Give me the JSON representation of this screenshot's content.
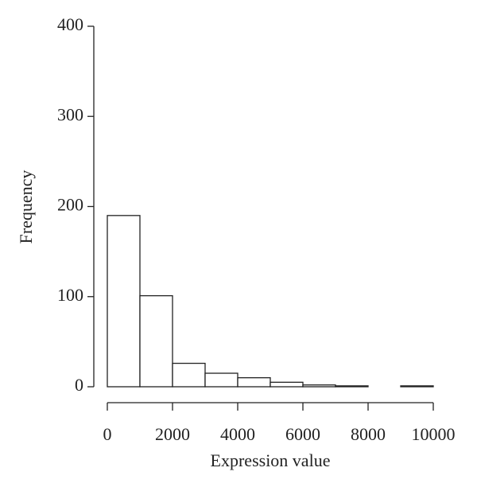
{
  "chart_data": {
    "type": "histogram",
    "xlabel": "Expression value",
    "ylabel": "Frequency",
    "bins": [
      0,
      1000,
      2000,
      3000,
      4000,
      5000,
      6000,
      7000,
      8000,
      9000,
      10000
    ],
    "values": [
      190,
      101,
      26,
      15,
      10,
      5,
      2,
      1,
      0,
      1
    ],
    "color": "#ffffff",
    "edgecolor": "#222222",
    "xlim": [
      0,
      10000
    ],
    "xticks": [
      0,
      2000,
      4000,
      6000,
      8000,
      10000
    ],
    "ylim": [
      0,
      400
    ],
    "yticks": [
      0,
      100,
      200,
      300,
      400
    ],
    "grid": false
  }
}
